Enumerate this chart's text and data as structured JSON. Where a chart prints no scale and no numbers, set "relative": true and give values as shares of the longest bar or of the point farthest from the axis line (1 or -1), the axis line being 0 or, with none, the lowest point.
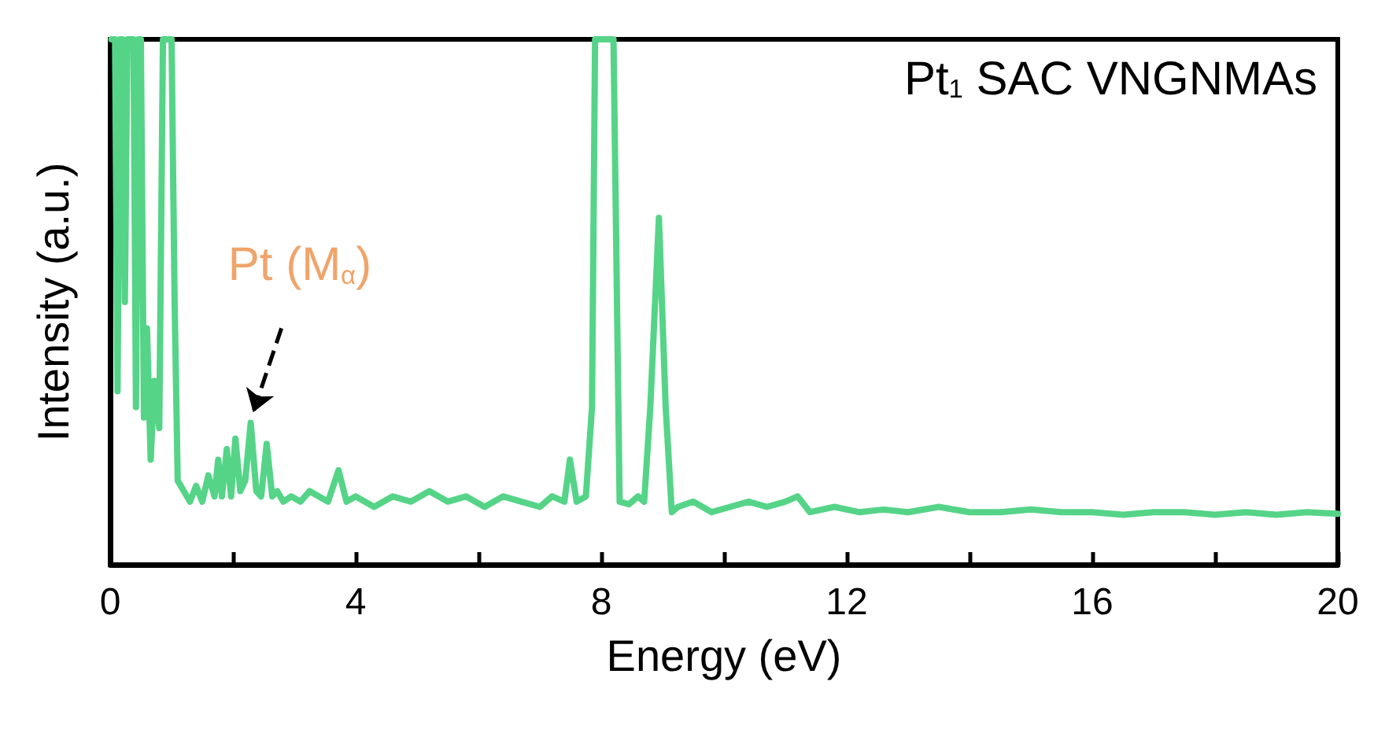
{
  "chart_data": {
    "type": "line",
    "title": "Pt$_{1}$ SAC VNGNMAs",
    "xlabel": "Energy (eV)",
    "ylabel": "Intensity (a.u.)",
    "relative": true,
    "xlim": [
      0,
      20
    ],
    "xticks": [
      0,
      {
        "value": 2,
        "label": null
      },
      4,
      {
        "value": 6,
        "label": null
      },
      8,
      {
        "value": 10,
        "label": null
      },
      12,
      {
        "value": 14,
        "label": null
      },
      16,
      {
        "value": 18,
        "label": null
      },
      20
    ],
    "marker": "none",
    "line_style": "solid",
    "annotations": [
      {
        "text": "Pt (M$_{α}$)",
        "x": 2.29,
        "y": 0.27
      }
    ],
    "series": [
      {
        "color": "#55d488",
        "x": [
          0.02,
          0.08,
          0.12,
          0.16,
          0.2,
          0.24,
          0.28,
          0.33,
          0.38,
          0.42,
          0.46,
          0.5,
          0.55,
          0.6,
          0.66,
          0.72,
          0.8,
          0.86,
          0.9,
          0.95,
          1.0,
          1.05,
          1.1,
          1.2,
          1.3,
          1.4,
          1.5,
          1.6,
          1.7,
          1.76,
          1.82,
          1.9,
          1.97,
          2.04,
          2.12,
          2.2,
          2.29,
          2.38,
          2.46,
          2.55,
          2.64,
          2.72,
          2.82,
          2.95,
          3.1,
          3.25,
          3.4,
          3.55,
          3.72,
          3.85,
          4.0,
          4.3,
          4.6,
          4.9,
          5.2,
          5.5,
          5.8,
          6.1,
          6.4,
          6.7,
          7.0,
          7.2,
          7.4,
          7.49,
          7.6,
          7.75,
          7.85,
          7.9,
          8.0,
          8.1,
          8.2,
          8.3,
          8.45,
          8.6,
          8.7,
          8.8,
          8.94,
          9.05,
          9.15,
          9.25,
          9.5,
          9.8,
          10.1,
          10.4,
          10.7,
          11.0,
          11.2,
          11.4,
          11.8,
          12.2,
          12.6,
          13.0,
          13.5,
          14.0,
          14.5,
          15.0,
          15.5,
          16.0,
          16.5,
          17.0,
          17.5,
          18.0,
          18.5,
          19.0,
          19.5,
          20.0
        ],
        "values": [
          1,
          1,
          0.33,
          1,
          1,
          0.5,
          1,
          1,
          1,
          0.3,
          1,
          1,
          0.28,
          0.45,
          0.2,
          0.35,
          0.26,
          1,
          1,
          1,
          1,
          0.5,
          0.16,
          0.14,
          0.12,
          0.15,
          0.12,
          0.17,
          0.13,
          0.2,
          0.13,
          0.22,
          0.13,
          0.24,
          0.14,
          0.16,
          0.27,
          0.14,
          0.13,
          0.23,
          0.13,
          0.14,
          0.12,
          0.13,
          0.12,
          0.14,
          0.13,
          0.12,
          0.18,
          0.12,
          0.13,
          0.11,
          0.13,
          0.12,
          0.14,
          0.12,
          0.13,
          0.11,
          0.13,
          0.12,
          0.11,
          0.13,
          0.12,
          0.2,
          0.12,
          0.13,
          0.3,
          1,
          1,
          1,
          1,
          0.12,
          0.115,
          0.13,
          0.12,
          0.3,
          0.66,
          0.3,
          0.1,
          0.11,
          0.12,
          0.1,
          0.11,
          0.12,
          0.11,
          0.12,
          0.13,
          0.1,
          0.11,
          0.1,
          0.105,
          0.1,
          0.11,
          0.1,
          0.1,
          0.105,
          0.1,
          0.1,
          0.095,
          0.1,
          0.1,
          0.095,
          0.1,
          0.095,
          0.1,
          0.097
        ]
      }
    ]
  }
}
